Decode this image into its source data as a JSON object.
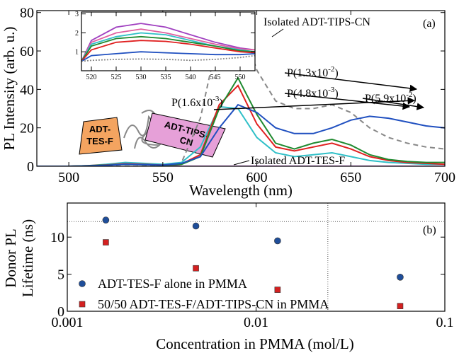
{
  "chart_data": [
    {
      "type": "line",
      "panel_label": "(a)",
      "x_label": "Wavelength (nm)",
      "y_label": "PL Intensity (arb. u.)",
      "xlim": [
        483,
        700
      ],
      "ylim": [
        0,
        81
      ],
      "xticks": [
        500,
        550,
        600,
        650,
        700
      ],
      "yticks": [
        0,
        20,
        40,
        60,
        80
      ],
      "x": [
        480,
        490,
        500,
        510,
        520,
        530,
        540,
        550,
        560,
        570,
        580,
        590,
        600,
        610,
        620,
        630,
        640,
        650,
        660,
        670,
        680,
        690,
        700
      ],
      "series": [
        {
          "name": "Isolated ADT-TIPS-CN",
          "color": "#888888",
          "dashed": true,
          "values": [
            0,
            0,
            0,
            0,
            0,
            0,
            0,
            0,
            2,
            25,
            70,
            80,
            50,
            34,
            30,
            30,
            32,
            28,
            20,
            15,
            12,
            10,
            9
          ]
        },
        {
          "name": "Isolated ADT-TES-F",
          "color": "#9b30b0",
          "values": [
            0,
            0,
            0,
            0,
            0.5,
            1.5,
            1,
            0.5,
            0,
            0,
            0,
            0,
            0,
            0,
            0,
            0,
            0,
            0,
            0,
            0,
            0,
            0,
            0
          ]
        },
        {
          "label": [
            "P(1.6x10",
            "-3",
            ")"
          ],
          "color": "#30c0c8",
          "values": [
            0,
            0,
            0,
            0.3,
            1,
            2,
            1.5,
            1,
            2,
            10,
            31,
            30,
            15,
            7,
            5,
            6,
            7,
            5,
            3,
            2,
            1.5,
            1,
            1
          ]
        },
        {
          "label": [
            "P(4.8x10",
            "-3",
            ")"
          ],
          "color": "#e02020",
          "values": [
            0,
            0,
            0,
            0.3,
            0.7,
            1.3,
            1,
            0.6,
            1.2,
            6,
            32,
            42,
            22,
            10,
            8,
            10,
            12,
            9,
            5,
            3,
            2,
            1.5,
            1
          ]
        },
        {
          "label": [
            "P(1.3x10",
            "-2",
            ")"
          ],
          "color": "#208a30",
          "values": [
            0,
            0,
            0,
            0.3,
            0.6,
            1,
            0.8,
            0.5,
            1,
            5,
            30,
            46,
            27,
            12,
            9,
            12,
            14,
            11,
            6,
            3.5,
            2.5,
            2,
            2
          ]
        },
        {
          "label": [
            "P(5.9x10",
            "-2",
            ")"
          ],
          "color": "#2050c0",
          "values": [
            0,
            0,
            0,
            0.2,
            0.5,
            1,
            0.8,
            0.6,
            1.5,
            5,
            20,
            32,
            28,
            20,
            17,
            17,
            20,
            24,
            26,
            25,
            23,
            21,
            20
          ]
        }
      ],
      "molecules": [
        [
          "ADT-",
          "TES-F"
        ],
        [
          "ADT-TIPS-",
          "CN"
        ]
      ],
      "inset": {
        "xlim": [
          518,
          553
        ],
        "ylim": [
          0,
          3.1
        ],
        "xticks": [
          520,
          525,
          530,
          535,
          540,
          545,
          550
        ],
        "yticks": [
          1,
          2,
          3
        ],
        "x": [
          518,
          520,
          525,
          530,
          535,
          540,
          545,
          550,
          553
        ],
        "series": [
          {
            "color": "#a040c0",
            "values": [
              0.5,
              1.6,
              2.3,
              2.5,
              2.3,
              1.9,
              1.5,
              1.2,
              1.1
            ]
          },
          {
            "color": "#e060a0",
            "values": [
              0.5,
              1.5,
              2.0,
              2.2,
              2.0,
              1.7,
              1.4,
              1.15,
              1.1
            ]
          },
          {
            "color": "#30c0c8",
            "values": [
              0.5,
              1.4,
              1.8,
              2.0,
              1.9,
              1.6,
              1.3,
              1.1,
              1.0
            ]
          },
          {
            "color": "#208a30",
            "values": [
              0.5,
              1.3,
              1.7,
              1.8,
              1.7,
              1.5,
              1.3,
              1.05,
              1.0
            ]
          },
          {
            "color": "#e02020",
            "values": [
              0.5,
              1.1,
              1.5,
              1.6,
              1.55,
              1.4,
              1.2,
              1.0,
              0.95
            ]
          },
          {
            "color": "#2050c0",
            "values": [
              0.5,
              0.8,
              0.9,
              1.0,
              0.95,
              0.9,
              0.85,
              0.85,
              0.9
            ]
          },
          {
            "color": "#888888",
            "dashed": true,
            "values": [
              0.5,
              0.55,
              0.6,
              0.62,
              0.6,
              0.55,
              0.6,
              0.7,
              0.8
            ]
          }
        ]
      }
    },
    {
      "type": "scatter",
      "panel_label": "(b)",
      "x_label": "Concentration in PMMA (mol/L)",
      "y_label": [
        "Donor PL",
        "Lifetime (ns)"
      ],
      "log_x": true,
      "xlim": [
        0.001,
        0.1
      ],
      "ylim": [
        0,
        14.6
      ],
      "xticks": [
        0.001,
        0.01,
        0.1
      ],
      "yticks": [
        0,
        5,
        10
      ],
      "hline": 12.1,
      "vline": 0.024,
      "series": [
        {
          "name": "ADT-TES-F alone in PMMA",
          "color": "#1f4e9a",
          "marker": "circle",
          "x": [
            0.0016,
            0.0048,
            0.013,
            0.058
          ],
          "values": [
            12.3,
            11.5,
            9.5,
            4.6
          ]
        },
        {
          "name": "50/50 ADT-TES-F/ADT-TIPS-CN in PMMA",
          "color": "#d42020",
          "marker": "square",
          "x": [
            0.0016,
            0.0048,
            0.013,
            0.058
          ],
          "values": [
            9.3,
            5.8,
            2.9,
            0.7
          ]
        }
      ]
    }
  ]
}
